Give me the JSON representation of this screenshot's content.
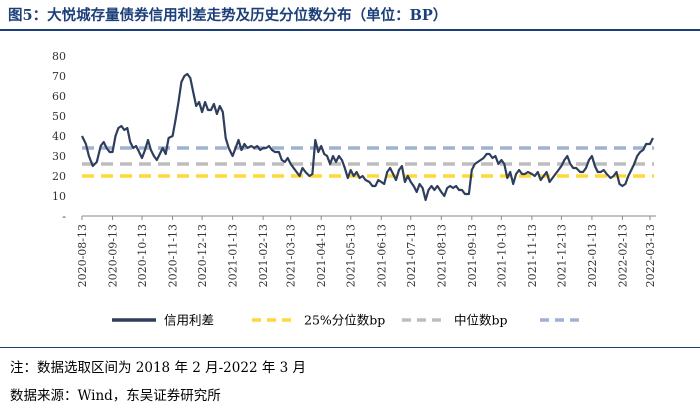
{
  "title": "图5：大悦城存量债券信用利差走势及历史分位数分布（单位：BP）",
  "notes": {
    "range": "注：数据选取区间为 2018 年 2 月-2022 年 3 月",
    "source": "数据来源：Wind，东吴证券研究所"
  },
  "colors": {
    "series": "#2e3e5c",
    "p25": "#ffd93a",
    "median": "#bdbdbd",
    "extra": "#9fb3d1",
    "rule": "#1c3f7a"
  },
  "chart_data": {
    "type": "line",
    "title": "",
    "xlabel": "",
    "ylabel": "",
    "ylim": [
      0,
      80
    ],
    "yticks": [
      "-",
      "10",
      "20",
      "30",
      "40",
      "50",
      "60",
      "70",
      "80"
    ],
    "x_ticks": [
      "2020-08-13",
      "2020-09-13",
      "2020-10-13",
      "2020-11-13",
      "2020-12-13",
      "2021-01-13",
      "2021-02-13",
      "2021-03-13",
      "2021-04-13",
      "2021-05-13",
      "2021-06-13",
      "2021-07-13",
      "2021-08-13",
      "2021-09-13",
      "2021-10-13",
      "2021-11-13",
      "2021-12-13",
      "2022-01-13",
      "2022-02-13",
      "2022-03-13"
    ],
    "grid": false,
    "legend_position": "bottom",
    "series": [
      {
        "name": "信用利差",
        "values": [
          [
            "2020-08-13",
            40
          ],
          [
            "2020-08-17",
            36
          ],
          [
            "2020-08-20",
            30
          ],
          [
            "2020-08-24",
            25
          ],
          [
            "2020-08-28",
            27
          ],
          [
            "2020-09-01",
            35
          ],
          [
            "2020-09-04",
            37
          ],
          [
            "2020-09-07",
            34
          ],
          [
            "2020-09-10",
            32
          ],
          [
            "2020-09-13",
            32
          ],
          [
            "2020-09-16",
            40
          ],
          [
            "2020-09-19",
            44
          ],
          [
            "2020-09-22",
            45
          ],
          [
            "2020-09-25",
            43
          ],
          [
            "2020-09-28",
            44
          ],
          [
            "2020-10-01",
            37
          ],
          [
            "2020-10-04",
            34
          ],
          [
            "2020-10-07",
            35
          ],
          [
            "2020-10-10",
            32
          ],
          [
            "2020-10-13",
            29
          ],
          [
            "2020-10-16",
            33
          ],
          [
            "2020-10-19",
            38
          ],
          [
            "2020-10-22",
            33
          ],
          [
            "2020-10-25",
            30
          ],
          [
            "2020-10-28",
            28
          ],
          [
            "2020-10-31",
            31
          ],
          [
            "2020-11-03",
            34
          ],
          [
            "2020-11-06",
            31
          ],
          [
            "2020-11-09",
            39
          ],
          [
            "2020-11-13",
            40
          ],
          [
            "2020-11-16",
            48
          ],
          [
            "2020-11-19",
            57
          ],
          [
            "2020-11-22",
            67
          ],
          [
            "2020-11-25",
            70
          ],
          [
            "2020-11-28",
            71
          ],
          [
            "2020-12-01",
            69
          ],
          [
            "2020-12-04",
            62
          ],
          [
            "2020-12-07",
            55
          ],
          [
            "2020-12-10",
            57
          ],
          [
            "2020-12-13",
            52
          ],
          [
            "2020-12-16",
            57
          ],
          [
            "2020-12-19",
            53
          ],
          [
            "2020-12-22",
            53
          ],
          [
            "2020-12-25",
            56
          ],
          [
            "2020-12-28",
            51
          ],
          [
            "2020-12-31",
            55
          ],
          [
            "2021-01-03",
            52
          ],
          [
            "2021-01-06",
            39
          ],
          [
            "2021-01-09",
            34
          ],
          [
            "2021-01-13",
            30
          ],
          [
            "2021-01-16",
            34
          ],
          [
            "2021-01-19",
            38
          ],
          [
            "2021-01-22",
            33
          ],
          [
            "2021-01-25",
            36
          ],
          [
            "2021-01-28",
            34
          ],
          [
            "2021-02-01",
            35
          ],
          [
            "2021-02-04",
            34
          ],
          [
            "2021-02-07",
            35
          ],
          [
            "2021-02-10",
            33
          ],
          [
            "2021-02-13",
            34
          ],
          [
            "2021-02-16",
            34
          ],
          [
            "2021-02-19",
            35
          ],
          [
            "2021-02-22",
            33
          ],
          [
            "2021-02-25",
            32
          ],
          [
            "2021-03-01",
            32
          ],
          [
            "2021-03-04",
            28
          ],
          [
            "2021-03-07",
            27
          ],
          [
            "2021-03-10",
            29
          ],
          [
            "2021-03-13",
            26
          ],
          [
            "2021-03-16",
            24
          ],
          [
            "2021-03-19",
            22
          ],
          [
            "2021-03-22",
            20
          ],
          [
            "2021-03-25",
            24
          ],
          [
            "2021-03-28",
            22
          ],
          [
            "2021-04-01",
            20
          ],
          [
            "2021-04-04",
            21
          ],
          [
            "2021-04-07",
            38
          ],
          [
            "2021-04-10",
            32
          ],
          [
            "2021-04-13",
            35
          ],
          [
            "2021-04-16",
            31
          ],
          [
            "2021-04-19",
            30
          ],
          [
            "2021-04-22",
            26
          ],
          [
            "2021-04-25",
            30
          ],
          [
            "2021-04-28",
            27
          ],
          [
            "2021-05-01",
            30
          ],
          [
            "2021-05-04",
            28
          ],
          [
            "2021-05-07",
            24
          ],
          [
            "2021-05-10",
            19
          ],
          [
            "2021-05-13",
            23
          ],
          [
            "2021-05-16",
            20
          ],
          [
            "2021-05-19",
            22
          ],
          [
            "2021-05-22",
            19
          ],
          [
            "2021-05-25",
            20
          ],
          [
            "2021-05-28",
            18
          ],
          [
            "2021-06-01",
            17
          ],
          [
            "2021-06-04",
            15
          ],
          [
            "2021-06-07",
            15
          ],
          [
            "2021-06-10",
            18
          ],
          [
            "2021-06-13",
            17
          ],
          [
            "2021-06-16",
            16
          ],
          [
            "2021-06-19",
            22
          ],
          [
            "2021-06-22",
            24
          ],
          [
            "2021-06-25",
            21
          ],
          [
            "2021-06-28",
            18
          ],
          [
            "2021-07-01",
            23
          ],
          [
            "2021-07-04",
            25
          ],
          [
            "2021-07-07",
            17
          ],
          [
            "2021-07-10",
            20
          ],
          [
            "2021-07-13",
            17
          ],
          [
            "2021-07-16",
            15
          ],
          [
            "2021-07-19",
            12
          ],
          [
            "2021-07-22",
            16
          ],
          [
            "2021-07-25",
            14
          ],
          [
            "2021-07-28",
            8
          ],
          [
            "2021-07-31",
            13
          ],
          [
            "2021-08-03",
            15
          ],
          [
            "2021-08-06",
            13
          ],
          [
            "2021-08-09",
            15
          ],
          [
            "2021-08-13",
            12
          ],
          [
            "2021-08-16",
            10
          ],
          [
            "2021-08-19",
            14
          ],
          [
            "2021-08-22",
            15
          ],
          [
            "2021-08-25",
            14
          ],
          [
            "2021-08-28",
            15
          ],
          [
            "2021-08-31",
            13
          ],
          [
            "2021-09-03",
            13
          ],
          [
            "2021-09-06",
            11
          ],
          [
            "2021-09-10",
            11
          ],
          [
            "2021-09-13",
            23
          ],
          [
            "2021-09-16",
            26
          ],
          [
            "2021-09-19",
            27
          ],
          [
            "2021-09-22",
            28
          ],
          [
            "2021-09-25",
            29
          ],
          [
            "2021-09-28",
            31
          ],
          [
            "2021-10-01",
            31
          ],
          [
            "2021-10-04",
            29
          ],
          [
            "2021-10-07",
            30
          ],
          [
            "2021-10-10",
            26
          ],
          [
            "2021-10-13",
            28
          ],
          [
            "2021-10-16",
            26
          ],
          [
            "2021-10-19",
            19
          ],
          [
            "2021-10-22",
            22
          ],
          [
            "2021-10-25",
            16
          ],
          [
            "2021-10-28",
            21
          ],
          [
            "2021-10-31",
            23
          ],
          [
            "2021-11-03",
            21
          ],
          [
            "2021-11-06",
            21
          ],
          [
            "2021-11-09",
            22
          ],
          [
            "2021-11-13",
            21
          ],
          [
            "2021-11-16",
            20
          ],
          [
            "2021-11-19",
            22
          ],
          [
            "2021-11-22",
            18
          ],
          [
            "2021-11-25",
            20
          ],
          [
            "2021-11-28",
            22
          ],
          [
            "2021-12-01",
            17
          ],
          [
            "2021-12-04",
            19
          ],
          [
            "2021-12-07",
            21
          ],
          [
            "2021-12-10",
            23
          ],
          [
            "2021-12-13",
            25
          ],
          [
            "2021-12-16",
            28
          ],
          [
            "2021-12-19",
            30
          ],
          [
            "2021-12-22",
            26
          ],
          [
            "2021-12-25",
            24
          ],
          [
            "2021-12-28",
            24
          ],
          [
            "2022-01-01",
            22
          ],
          [
            "2022-01-04",
            22
          ],
          [
            "2022-01-07",
            24
          ],
          [
            "2022-01-10",
            28
          ],
          [
            "2022-01-13",
            30
          ],
          [
            "2022-01-16",
            25
          ],
          [
            "2022-01-19",
            22
          ],
          [
            "2022-01-22",
            22
          ],
          [
            "2022-01-25",
            23
          ],
          [
            "2022-01-28",
            21
          ],
          [
            "2022-02-01",
            19
          ],
          [
            "2022-02-04",
            20
          ],
          [
            "2022-02-07",
            22
          ],
          [
            "2022-02-10",
            16
          ],
          [
            "2022-02-13",
            15
          ],
          [
            "2022-02-16",
            16
          ],
          [
            "2022-02-19",
            20
          ],
          [
            "2022-02-22",
            23
          ],
          [
            "2022-02-25",
            26
          ],
          [
            "2022-02-28",
            30
          ],
          [
            "2022-03-03",
            32
          ],
          [
            "2022-03-06",
            33
          ],
          [
            "2022-03-09",
            36
          ],
          [
            "2022-03-13",
            36
          ],
          [
            "2022-03-16",
            39
          ]
        ]
      },
      {
        "name": "25%分位数bp",
        "value": 20
      },
      {
        "name": "中位数bp",
        "value": 26
      },
      {
        "name": "",
        "value": 34
      }
    ]
  }
}
